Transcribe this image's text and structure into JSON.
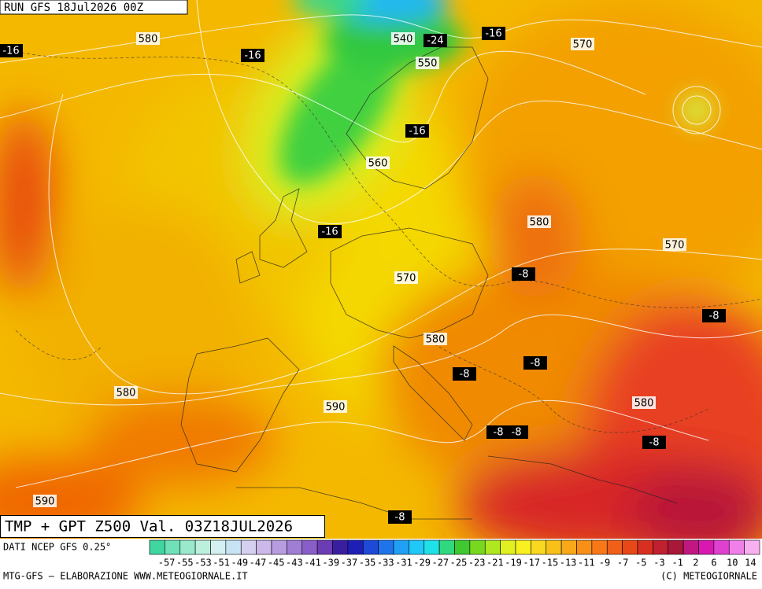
{
  "header": {
    "run": "RUN GFS 18Jul2026 00Z"
  },
  "map": {
    "geopotential_labels": [
      580,
      540,
      550,
      570,
      560,
      580,
      570,
      570,
      580,
      580,
      590,
      580,
      590
    ],
    "temperature_labels": [
      -24,
      -16,
      -16,
      -16,
      -16,
      -16,
      -8,
      -8,
      -8,
      -8,
      -8,
      -8,
      -8,
      -8
    ]
  },
  "footer": {
    "title": "TMP + GPT Z500 Val. 03Z18JUL2026",
    "source": "DATI NCEP GFS 0.25°",
    "credit_left": "MTG-GFS — ELABORAZIONE WWW.METEOGIORNALE.IT",
    "credit_right": "(C) METEOGIORNALE"
  },
  "colorbar": {
    "labels": [
      -57,
      -55,
      -53,
      -51,
      -49,
      -47,
      -45,
      -43,
      -41,
      -39,
      -37,
      -35,
      -33,
      -31,
      -29,
      -27,
      -25,
      -23,
      -21,
      -19,
      -17,
      -15,
      -13,
      -11,
      -9,
      -7,
      -5,
      -3,
      -1,
      2,
      6,
      10,
      14
    ],
    "colors": [
      "#3fd6a0",
      "#6fe0b8",
      "#9ae9cc",
      "#bdf0dc",
      "#d4f0f0",
      "#c8e4f4",
      "#d6d0f0",
      "#cdb8ea",
      "#b89ce0",
      "#a07ed4",
      "#8a5ec8",
      "#6c3cb4",
      "#3a1ea0",
      "#1f1fb8",
      "#1f4ad8",
      "#1f74ec",
      "#20a0f4",
      "#20c8f8",
      "#20e0e8",
      "#30d880",
      "#40c830",
      "#78d820",
      "#b0e820",
      "#e0f020",
      "#f8f020",
      "#f8d820",
      "#f8c018",
      "#f8a818",
      "#f89018",
      "#f87818",
      "#f06018",
      "#e84818",
      "#d83020",
      "#c02030",
      "#a81838",
      "#c01880",
      "#d818b0",
      "#e040d0",
      "#f080e8",
      "#f8b0f0"
    ]
  }
}
